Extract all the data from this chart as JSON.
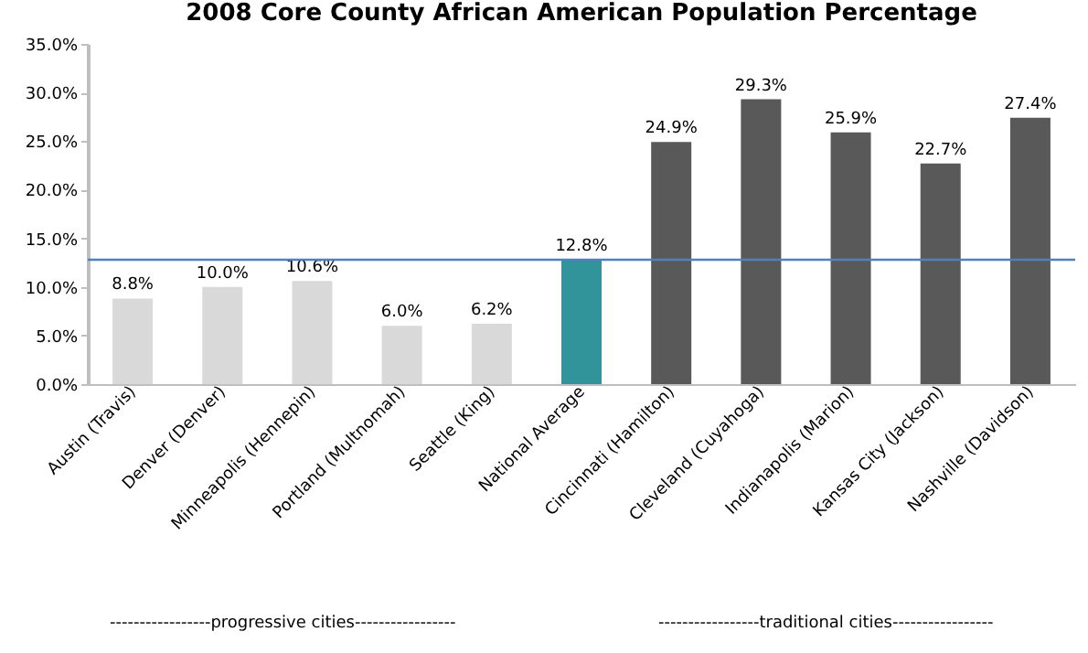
{
  "chart_data": {
    "type": "bar",
    "title": "2008 Core County African American Population Percentage",
    "categories": [
      "Austin (Travis)",
      "Denver (Denver)",
      "Minneapolis (Hennepin)",
      "Portland (Multnomah)",
      "Seattle (King)",
      "National Average",
      "Cincinnati (Hamilton)",
      "Cleveland (Cuyahoga)",
      "Indianapolis (Marion)",
      "Kansas City (Jackson)",
      "Nashville (Davidson)"
    ],
    "values": [
      8.8,
      10.0,
      10.6,
      6.0,
      6.2,
      12.8,
      24.9,
      29.3,
      25.9,
      22.7,
      27.4
    ],
    "value_labels": [
      "8.8%",
      "10.0%",
      "10.6%",
      "6.0%",
      "6.2%",
      "12.8%",
      "24.9%",
      "29.3%",
      "25.9%",
      "22.7%",
      "27.4%"
    ],
    "colors": [
      "#d9d9d9",
      "#d9d9d9",
      "#d9d9d9",
      "#d9d9d9",
      "#d9d9d9",
      "#31949a",
      "#595959",
      "#595959",
      "#595959",
      "#595959",
      "#595959"
    ],
    "ylim": [
      0,
      35
    ],
    "yticks": [
      {
        "value": 0,
        "label": "0.0%"
      },
      {
        "value": 5,
        "label": "5.0%"
      },
      {
        "value": 10,
        "label": "10.0%"
      },
      {
        "value": 15,
        "label": "15.0%"
      },
      {
        "value": 20,
        "label": "20.0%"
      },
      {
        "value": 25,
        "label": "25.0%"
      },
      {
        "value": 30,
        "label": "30.0%"
      },
      {
        "value": 35,
        "label": "35.0%"
      }
    ],
    "ref_lines": [
      {
        "axis": "y",
        "value": 12.8,
        "color": "#4f81bd"
      }
    ],
    "annotations": [
      "-----------------progressive cities-----------------",
      "-----------------traditional cities-----------------"
    ],
    "grid": false
  }
}
